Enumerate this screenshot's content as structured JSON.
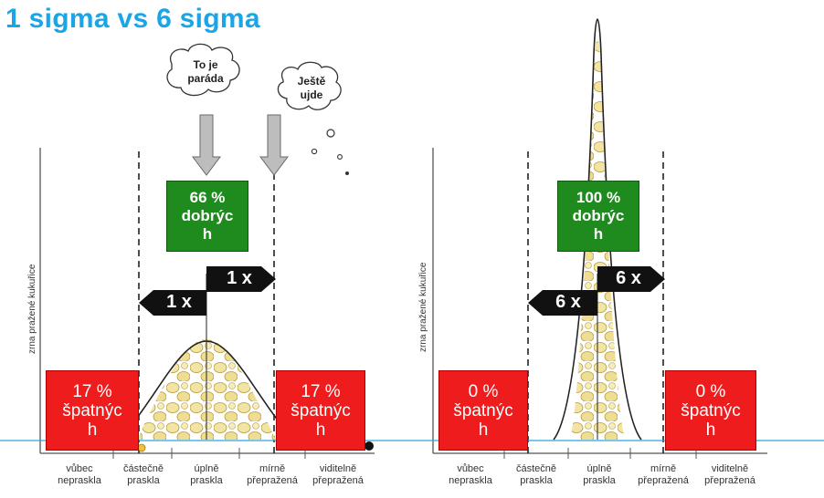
{
  "title": "1 sigma vs 6 sigma",
  "left": {
    "ylabel": "zrna pražené kukuřice",
    "good": "66 %\ndobrýc\nh",
    "bad_left": "17 %\nšpatnýc\nh",
    "bad_right": "17 %\nšpatnýc\nh",
    "arrow_upper": "1 x",
    "arrow_lower": "1 x",
    "cloud1": "To je\nparáda",
    "cloud2": "Ještě\nujde",
    "categories": [
      "vůbec\nnepraskla",
      "částečně\npraskla",
      "úplně\npraskla",
      "mírně\npřepražená",
      "viditelně\npřepražená"
    ]
  },
  "right": {
    "ylabel": "zrna pražené kukuřice",
    "good": "100 %\ndobrýc\nh",
    "bad_left": "0 %\nšpatnýc\nh",
    "bad_right": "0 %\nšpatnýc\nh",
    "arrow_upper": "6 x",
    "arrow_lower": "6 x",
    "categories": [
      "vůbec\nnepraskla",
      "částečně\npraskla",
      "úplně\npraskla",
      "mírně\npřepražená",
      "viditelně\npřepražená"
    ]
  },
  "colors": {
    "title": "#1aa6e6",
    "bad": "#ee1c1c",
    "good": "#1f8b1f",
    "baseline": "#29a6dc",
    "popcorn": "#f1e2a0"
  }
}
